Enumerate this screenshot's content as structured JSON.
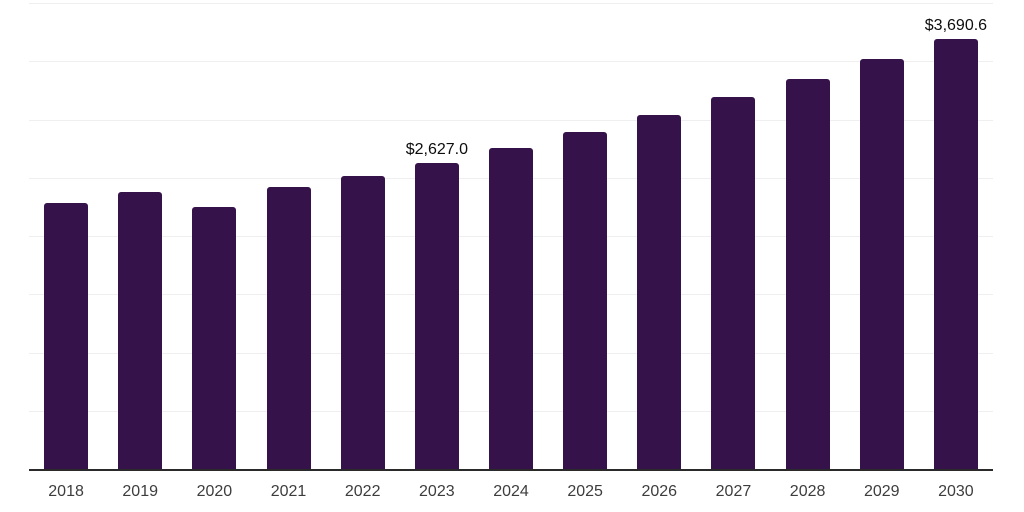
{
  "chart_data": {
    "type": "bar",
    "title": "",
    "xlabel": "",
    "ylabel": "",
    "categories": [
      "2018",
      "2019",
      "2020",
      "2021",
      "2022",
      "2023",
      "2024",
      "2025",
      "2026",
      "2027",
      "2028",
      "2029",
      "2030"
    ],
    "values": [
      2285.0,
      2375.0,
      2247.0,
      2424.0,
      2518.0,
      2627.0,
      2757.8,
      2895.0,
      3039.2,
      3190.5,
      3349.3,
      3516.0,
      3690.6
    ],
    "data_labels": {
      "2023": "$2,627.0",
      "2030": "$3,690.6"
    },
    "ylim": [
      0,
      4000
    ],
    "gridline_step": 500,
    "grid": "horizontal",
    "y_axis_labels_shown": false,
    "legend": "none",
    "colors": {
      "bar": "#351249",
      "axis": "#2a2a2a",
      "gridline": "#efefef",
      "tick_label": "#3d3d3d",
      "data_label": "#0d0d0d",
      "background": "#ffffff"
    }
  }
}
